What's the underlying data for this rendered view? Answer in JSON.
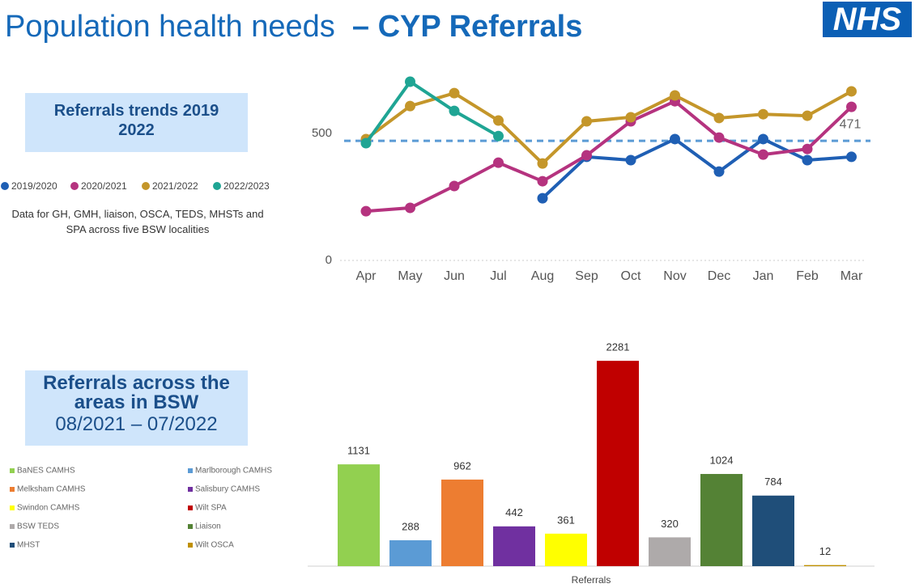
{
  "header": {
    "title_main": "Population health needs",
    "title_emphasis": "– CYP Referrals",
    "logo": "NHS"
  },
  "trend_box": {
    "title": "Referrals trends 2019 2022",
    "note": "Data for GH, GMH, liaison, OSCA, TEDS, MHSTs and SPA across five BSW localities"
  },
  "areas_box": {
    "title": "Referrals across the areas in BSW",
    "subtitle": "08/2021 – 07/2022"
  },
  "chart_data": [
    {
      "type": "line",
      "categories": [
        "Apr",
        "May",
        "Jun",
        "Jul",
        "Aug",
        "Sep",
        "Oct",
        "Nov",
        "Dec",
        "Jan",
        "Feb",
        "Mar"
      ],
      "series": [
        {
          "name": "2019/2020",
          "color": "#1f5fb4",
          "values": [
            null,
            null,
            null,
            null,
            245,
            408,
            395,
            478,
            350,
            478,
            395,
            408
          ]
        },
        {
          "name": "2020/2021",
          "color": "#b5337f",
          "values": [
            194,
            207,
            293,
            385,
            312,
            414,
            548,
            627,
            484,
            417,
            439,
            605
          ]
        },
        {
          "name": "2021/2022",
          "color": "#c4962a",
          "values": [
            478,
            608,
            659,
            551,
            382,
            548,
            564,
            650,
            561,
            576,
            570,
            666
          ]
        },
        {
          "name": "2022/2023",
          "color": "#1fa594",
          "values": [
            462,
            704,
            589,
            490,
            null,
            null,
            null,
            null,
            null,
            null,
            null,
            null
          ]
        }
      ],
      "reference_line": 471,
      "ylim": [
        0,
        720
      ],
      "yticks": [
        0,
        500
      ]
    },
    {
      "type": "bar",
      "x_label": "Referrals",
      "categories": [
        "BaNES CAMHS",
        "Marlborough CAMHS",
        "Melksham CAMHS",
        "Salisbury CAMHS",
        "Swindon CAMHS",
        "Wilt SPA",
        "BSW TEDS",
        "Liaison",
        "MHST",
        "Wilt OSCA"
      ],
      "values": [
        1131,
        288,
        962,
        442,
        361,
        2281,
        320,
        1024,
        784,
        12
      ],
      "colors": [
        "#92d050",
        "#5b9bd5",
        "#ed7d31",
        "#7030a0",
        "#ffff00",
        "#c00000",
        "#aeaaaa",
        "#548235",
        "#1f4e79",
        "#bf9000"
      ],
      "ylim": [
        0,
        2300
      ]
    }
  ]
}
